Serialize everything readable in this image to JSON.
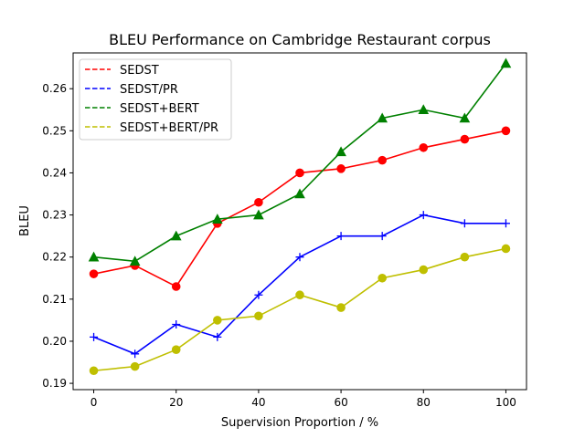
{
  "chart_data": {
    "type": "line",
    "title": "BLEU Performance on Cambridge Restaurant corpus",
    "xlabel": "Supervision Proportion / %",
    "ylabel": "BLEU",
    "xlim": [
      -5,
      105
    ],
    "ylim": [
      0.1885,
      0.2685
    ],
    "x_ticks": [
      0,
      20,
      40,
      60,
      80,
      100
    ],
    "y_ticks": [
      0.19,
      0.2,
      0.21,
      0.22,
      0.23,
      0.24,
      0.25,
      0.26
    ],
    "y_tick_labels": [
      "0.19",
      "0.20",
      "0.21",
      "0.22",
      "0.23",
      "0.24",
      "0.25",
      "0.26"
    ],
    "grid": false,
    "legend_position": "top-left",
    "x": [
      0,
      10,
      20,
      30,
      40,
      50,
      60,
      70,
      80,
      90,
      100
    ],
    "series": [
      {
        "name": "SEDST",
        "color": "#ff0000",
        "marker": "circle",
        "values": [
          0.216,
          0.218,
          0.213,
          0.228,
          0.233,
          0.24,
          0.241,
          0.243,
          0.246,
          0.248,
          0.25
        ]
      },
      {
        "name": "SEDST/PR",
        "color": "#0000ff",
        "marker": "plus",
        "values": [
          0.201,
          0.197,
          0.204,
          0.201,
          0.211,
          0.22,
          0.225,
          0.225,
          0.23,
          0.228,
          0.228
        ]
      },
      {
        "name": "SEDST+BERT",
        "color": "#008000",
        "marker": "triangle",
        "values": [
          0.22,
          0.219,
          0.225,
          0.229,
          0.23,
          0.235,
          0.245,
          0.253,
          0.255,
          0.253,
          0.266
        ]
      },
      {
        "name": "SEDST+BERT/PR",
        "color": "#bfbf00",
        "marker": "circle",
        "values": [
          0.193,
          0.194,
          0.198,
          0.205,
          0.206,
          0.211,
          0.208,
          0.215,
          0.217,
          0.22,
          0.222
        ]
      }
    ]
  }
}
